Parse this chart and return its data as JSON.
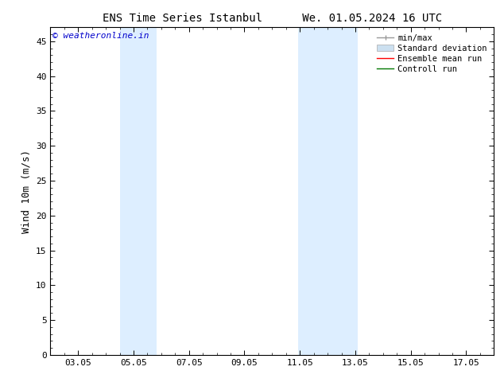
{
  "title": "ENS Time Series Istanbul      We. 01.05.2024 16 UTC",
  "ylabel": "Wind 10m (m/s)",
  "ylim": [
    0,
    47
  ],
  "yticks": [
    0,
    5,
    10,
    15,
    20,
    25,
    30,
    35,
    40,
    45
  ],
  "xtick_labels": [
    "03.05",
    "05.05",
    "07.05",
    "09.05",
    "11.05",
    "13.05",
    "15.05",
    "17.05"
  ],
  "xtick_positions": [
    3,
    5,
    7,
    9,
    11,
    13,
    15,
    17
  ],
  "xlim": [
    2,
    18
  ],
  "shaded_bands": [
    {
      "xmin": 4.5,
      "xmax": 5.83,
      "color": "#ddeeff"
    },
    {
      "xmin": 10.95,
      "xmax": 13.1,
      "color": "#ddeeff"
    }
  ],
  "watermark_text": "© weatheronline.in",
  "watermark_color": "#0000cc",
  "legend_items": [
    {
      "label": "min/max",
      "color": "#999999",
      "lw": 1.0,
      "type": "line_marker"
    },
    {
      "label": "Standard deviation",
      "color": "#cce0f0",
      "lw": 5,
      "type": "patch"
    },
    {
      "label": "Ensemble mean run",
      "color": "#ff0000",
      "lw": 1.0,
      "type": "line"
    },
    {
      "label": "Controll run",
      "color": "#007700",
      "lw": 1.0,
      "type": "line"
    }
  ],
  "bg_color": "#ffffff",
  "plot_bg_color": "#ffffff",
  "title_fontsize": 10,
  "tick_fontsize": 8,
  "ylabel_fontsize": 9,
  "legend_fontsize": 7.5,
  "watermark_fontsize": 8
}
